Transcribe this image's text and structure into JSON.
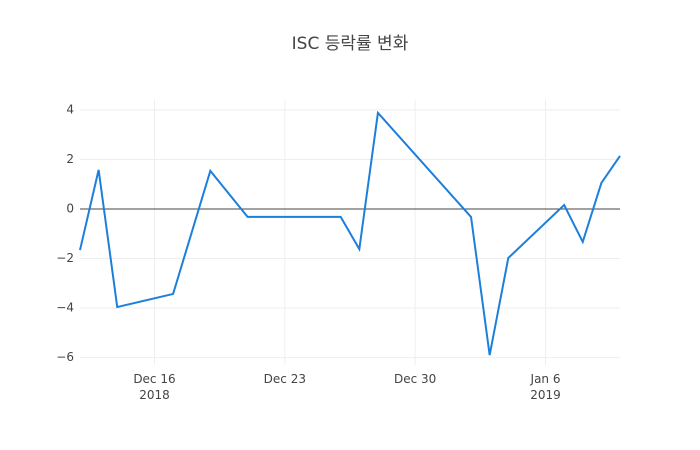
{
  "chart_data": {
    "type": "line",
    "title": "ISC 등락률 변화",
    "x": [
      "2018-12-12",
      "2018-12-13",
      "2018-12-14",
      "2018-12-17",
      "2018-12-19",
      "2018-12-21",
      "2018-12-26",
      "2018-12-27",
      "2018-12-28",
      "2019-01-02",
      "2019-01-03",
      "2019-01-04",
      "2019-01-07",
      "2019-01-08",
      "2019-01-09",
      "2019-01-10"
    ],
    "series": [
      {
        "color": "#1c7fdc",
        "values": [
          -1.66,
          1.58,
          -3.96,
          -3.43,
          1.54,
          -0.32,
          -0.32,
          -1.62,
          3.88,
          -0.32,
          -5.9,
          -1.98,
          0.16,
          -1.33,
          1.05,
          2.14
        ]
      }
    ],
    "xlim": [
      "2018-12-12",
      "2019-01-10"
    ],
    "xticks": [
      {
        "value": "2018-12-16",
        "label": "Dec 16\n2018"
      },
      {
        "value": "2018-12-23",
        "label": "Dec 23"
      },
      {
        "value": "2018-12-30",
        "label": "Dec 30"
      },
      {
        "value": "2019-01-06",
        "label": "Jan 6\n2019"
      }
    ],
    "ylim": [
      -6.3,
      4.4
    ],
    "yticks": [
      {
        "value": -6,
        "label": "−6"
      },
      {
        "value": -4,
        "label": "−4"
      },
      {
        "value": -2,
        "label": "−2"
      },
      0,
      2,
      4
    ],
    "grid": true,
    "zeroline": true
  }
}
